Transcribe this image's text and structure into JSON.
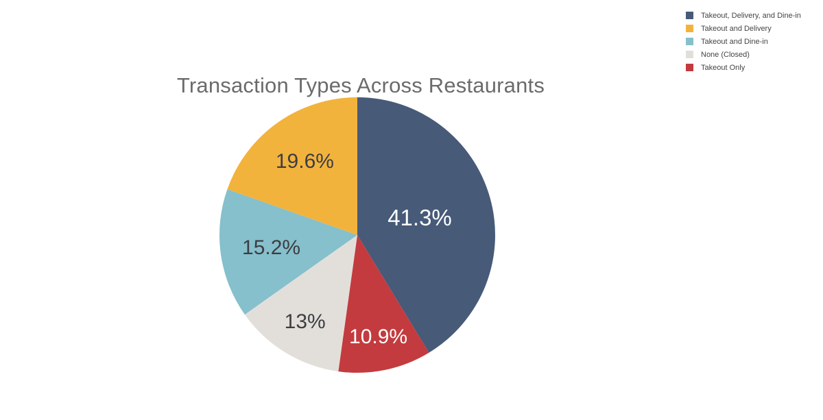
{
  "chart_data": {
    "type": "pie",
    "title": "Transaction Types Across Restaurants",
    "legend_position": "top-right",
    "slices": [
      {
        "label": "Takeout, Delivery, and Dine-in",
        "value": 41.3,
        "display": "41.3%",
        "color": "#475a78",
        "text_color": "#ffffff",
        "label_r_frac": 0.47
      },
      {
        "label": "Takeout and Delivery",
        "value": 19.6,
        "display": "19.6%",
        "color": "#f2b33d",
        "text_color": "#3d3d42",
        "label_r_frac": 0.66
      },
      {
        "label": "Takeout and Dine-in",
        "value": 15.2,
        "display": "15.2%",
        "color": "#85c0cc",
        "text_color": "#3d3d42",
        "label_r_frac": 0.63
      },
      {
        "label": "None (Closed)",
        "value": 13,
        "display": "13%",
        "color": "#e2dfda",
        "text_color": "#3d3d42",
        "label_r_frac": 0.73
      },
      {
        "label": "Takeout Only",
        "value": 10.9,
        "display": "10.9%",
        "color": "#c33b3e",
        "text_color": "#ffffff",
        "label_r_frac": 0.75
      }
    ],
    "layout": {
      "start_angle_deg": 0,
      "direction": "clockwise",
      "draw_order": [
        0,
        4,
        3,
        2,
        1
      ],
      "labels_inside": true,
      "legend_colors_match_slices": true
    },
    "colors": {
      "title": "#6b6b6b",
      "legend_text": "#444444",
      "background": "#ffffff"
    }
  }
}
